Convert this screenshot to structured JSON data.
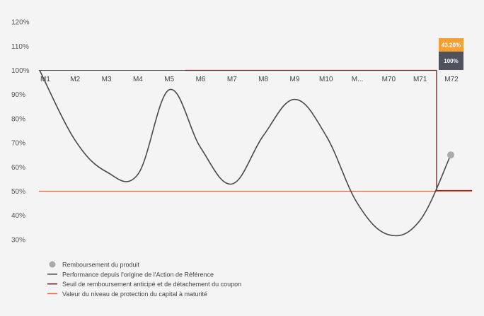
{
  "chart_data": {
    "type": "line",
    "y_ticks": [
      "120%",
      "110%",
      "100%",
      "90%",
      "80%",
      "70%",
      "60%",
      "50%",
      "40%",
      "30%"
    ],
    "y_tick_values": [
      120,
      110,
      100,
      90,
      80,
      70,
      60,
      50,
      40,
      30
    ],
    "ylim": [
      27,
      122
    ],
    "categories": [
      "M1",
      "M2",
      "M3",
      "M4",
      "M5",
      "M6",
      "M7",
      "M8",
      "M9",
      "M10",
      "M...",
      "M70",
      "M71",
      "M72"
    ],
    "series": [
      {
        "name": "Performance depuis l'origine de l'Action de Référence",
        "color": "#4a4a4a",
        "values": [
          100,
          71,
          58,
          57,
          92,
          68,
          53,
          73,
          88,
          73,
          45,
          32,
          38,
          65
        ]
      }
    ],
    "early_redemption_threshold": {
      "value": 100,
      "from_category": "M6",
      "color": "#6b1f24"
    },
    "capital_protection_level": {
      "value": 50,
      "color": "#e8643c"
    },
    "final_boxes": [
      {
        "label": "43.20%",
        "color": "#f5a033"
      },
      {
        "label": "100%",
        "color": "#4e525a"
      }
    ],
    "redemption_marker": {
      "category": "M72",
      "value": 65,
      "color": "#aaaaaa"
    },
    "legend": [
      {
        "type": "dot",
        "label": "Remboursement du produit",
        "color": "#aaaaaa"
      },
      {
        "type": "line",
        "label": "Performance depuis l'origine de l'Action de Référence",
        "color": "#4a4a4a"
      },
      {
        "type": "line",
        "label": "Seuil de remboursement anticipé et de détachement du coupon",
        "color": "#6b1f24"
      },
      {
        "type": "line",
        "label": "Valeur du niveau de protection du capital à maturité",
        "color": "#e8643c"
      }
    ],
    "legend_position": "bottom-left",
    "grid": false
  }
}
